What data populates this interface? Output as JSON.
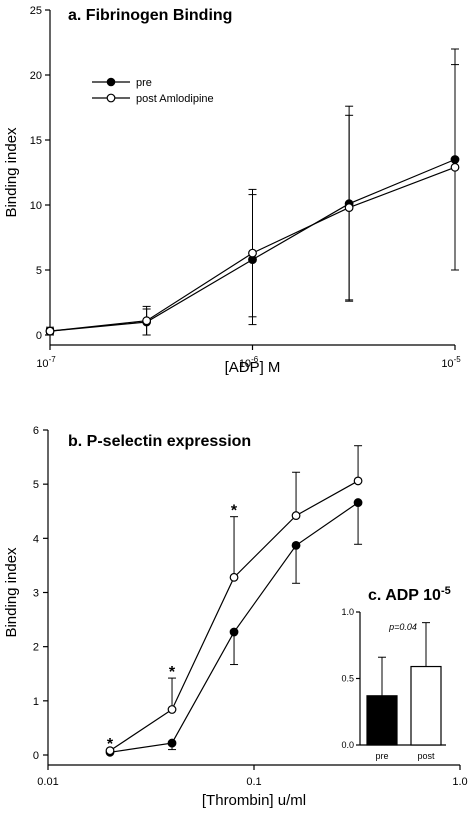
{
  "chart_data": [
    {
      "type": "line",
      "title": "a.  Fibrinogen Binding",
      "xlabel": "[ADP] M",
      "ylabel": "Binding index",
      "x_scale": "log",
      "xlim": [
        1e-07,
        1e-05
      ],
      "ylim": [
        0,
        25
      ],
      "yticks": [
        0,
        5,
        10,
        15,
        20,
        25
      ],
      "xticks": [
        {
          "value": 1e-07,
          "base": "10",
          "exp": "-7"
        },
        {
          "value": 1e-06,
          "base": "10",
          "exp": "-6"
        },
        {
          "value": 1e-05,
          "base": "10",
          "exp": "-5"
        }
      ],
      "x": [
        1e-07,
        3e-07,
        1e-06,
        3e-06,
        1e-05
      ],
      "series": [
        {
          "name": "pre",
          "marker": "filled-circle",
          "values": [
            0.3,
            1.0,
            5.8,
            10.1,
            13.5
          ],
          "err": [
            0.3,
            1.0,
            5.0,
            7.5,
            8.5
          ]
        },
        {
          "name": "post Amlodipine",
          "marker": "open-circle",
          "values": [
            0.3,
            1.1,
            6.3,
            9.8,
            12.9
          ],
          "err": [
            0.2,
            1.1,
            4.9,
            7.1,
            7.9
          ]
        }
      ],
      "legend": "top-left",
      "grid": false
    },
    {
      "type": "line",
      "title": "b.  P-selectin expression",
      "xlabel": "[Thrombin] u/ml",
      "ylabel": "Binding index",
      "x_scale": "log",
      "xlim": [
        0.01,
        1.0
      ],
      "ylim": [
        0,
        6
      ],
      "yticks": [
        0,
        1,
        2,
        3,
        4,
        5,
        6
      ],
      "xticks": [
        {
          "value": 0.01,
          "label": "0.01"
        },
        {
          "value": 0.1,
          "label": "0.1"
        },
        {
          "value": 1.0,
          "label": "1.0"
        }
      ],
      "x": [
        0.02,
        0.04,
        0.08,
        0.16,
        0.32
      ],
      "series": [
        {
          "name": "pre",
          "marker": "filled-circle",
          "values": [
            0.05,
            0.22,
            2.27,
            3.87,
            4.66
          ],
          "err_low": [
            0.0,
            0.12,
            0.6,
            0.7,
            0.77
          ],
          "err_high": [
            0,
            0,
            0,
            0,
            0
          ]
        },
        {
          "name": "post Amlodipine",
          "marker": "open-circle",
          "values": [
            0.08,
            0.84,
            3.28,
            4.42,
            5.06
          ],
          "err_low": [
            0,
            0,
            0,
            0,
            0
          ],
          "err_high": [
            0.0,
            0.58,
            1.12,
            0.8,
            0.65
          ]
        }
      ],
      "annotations": [
        "*",
        "*",
        "*"
      ],
      "annotation_x": [
        0.02,
        0.04,
        0.08
      ],
      "annotation_y": [
        0.22,
        1.55,
        4.53
      ],
      "grid": false
    },
    {
      "type": "bar",
      "title": "c.  ADP 10",
      "title_exp": "-5",
      "categories": [
        "pre",
        "post"
      ],
      "values": [
        0.37,
        0.59
      ],
      "err_high": [
        0.29,
        0.33
      ],
      "colors": [
        "#000000",
        "#ffffff"
      ],
      "ylim": [
        0,
        1.0
      ],
      "yticks": [
        {
          "value": 0.0,
          "label": "0.0"
        },
        {
          "value": 0.5,
          "label": "0.5"
        },
        {
          "value": 1.0,
          "label": "1.0"
        }
      ],
      "annotation": "p=0.04"
    }
  ]
}
